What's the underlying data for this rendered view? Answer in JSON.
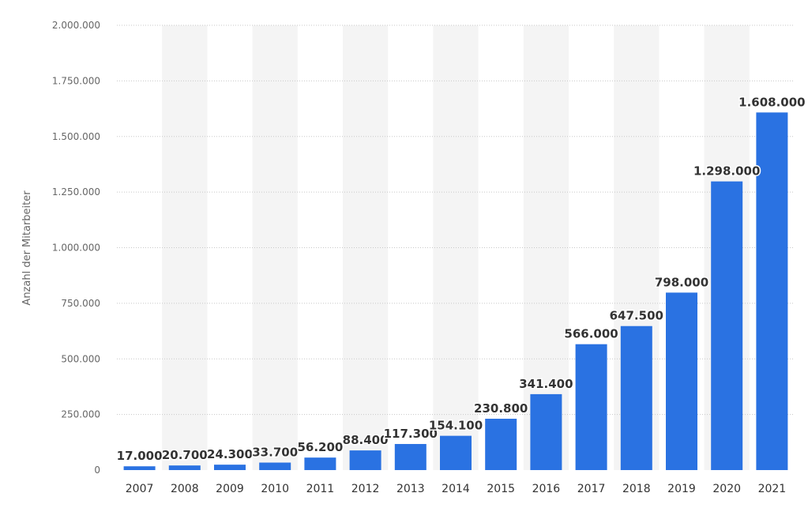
{
  "chart_data": {
    "type": "bar",
    "categories": [
      "2007",
      "2008",
      "2009",
      "2010",
      "2011",
      "2012",
      "2013",
      "2014",
      "2015",
      "2016",
      "2017",
      "2018",
      "2019",
      "2020",
      "2021"
    ],
    "values": [
      17000,
      20700,
      24300,
      33700,
      56200,
      88400,
      117300,
      154100,
      230800,
      341400,
      566000,
      647500,
      798000,
      1298000,
      1608000
    ],
    "value_labels": [
      "17.000",
      "20.700",
      "24.300",
      "33.700",
      "56.200",
      "88.400",
      "117.300",
      "154.100",
      "230.800",
      "341.400",
      "566.000",
      "647.500",
      "798.000",
      "1.298.000",
      "1.608.000"
    ],
    "ylabel": "Anzahl der Mitarbeiter",
    "xlabel": "",
    "ylim": [
      0,
      2000000
    ],
    "yticks": [
      0,
      250000,
      500000,
      750000,
      1000000,
      1250000,
      1500000,
      1750000,
      2000000
    ],
    "ytick_labels": [
      "0",
      "250.000",
      "500.000",
      "750.000",
      "1.000.000",
      "1.250.000",
      "1.500.000",
      "1.750.000",
      "2.000.000"
    ],
    "grid": true,
    "bar_color": "#2a72e2",
    "band_color": "#f4f4f4"
  }
}
